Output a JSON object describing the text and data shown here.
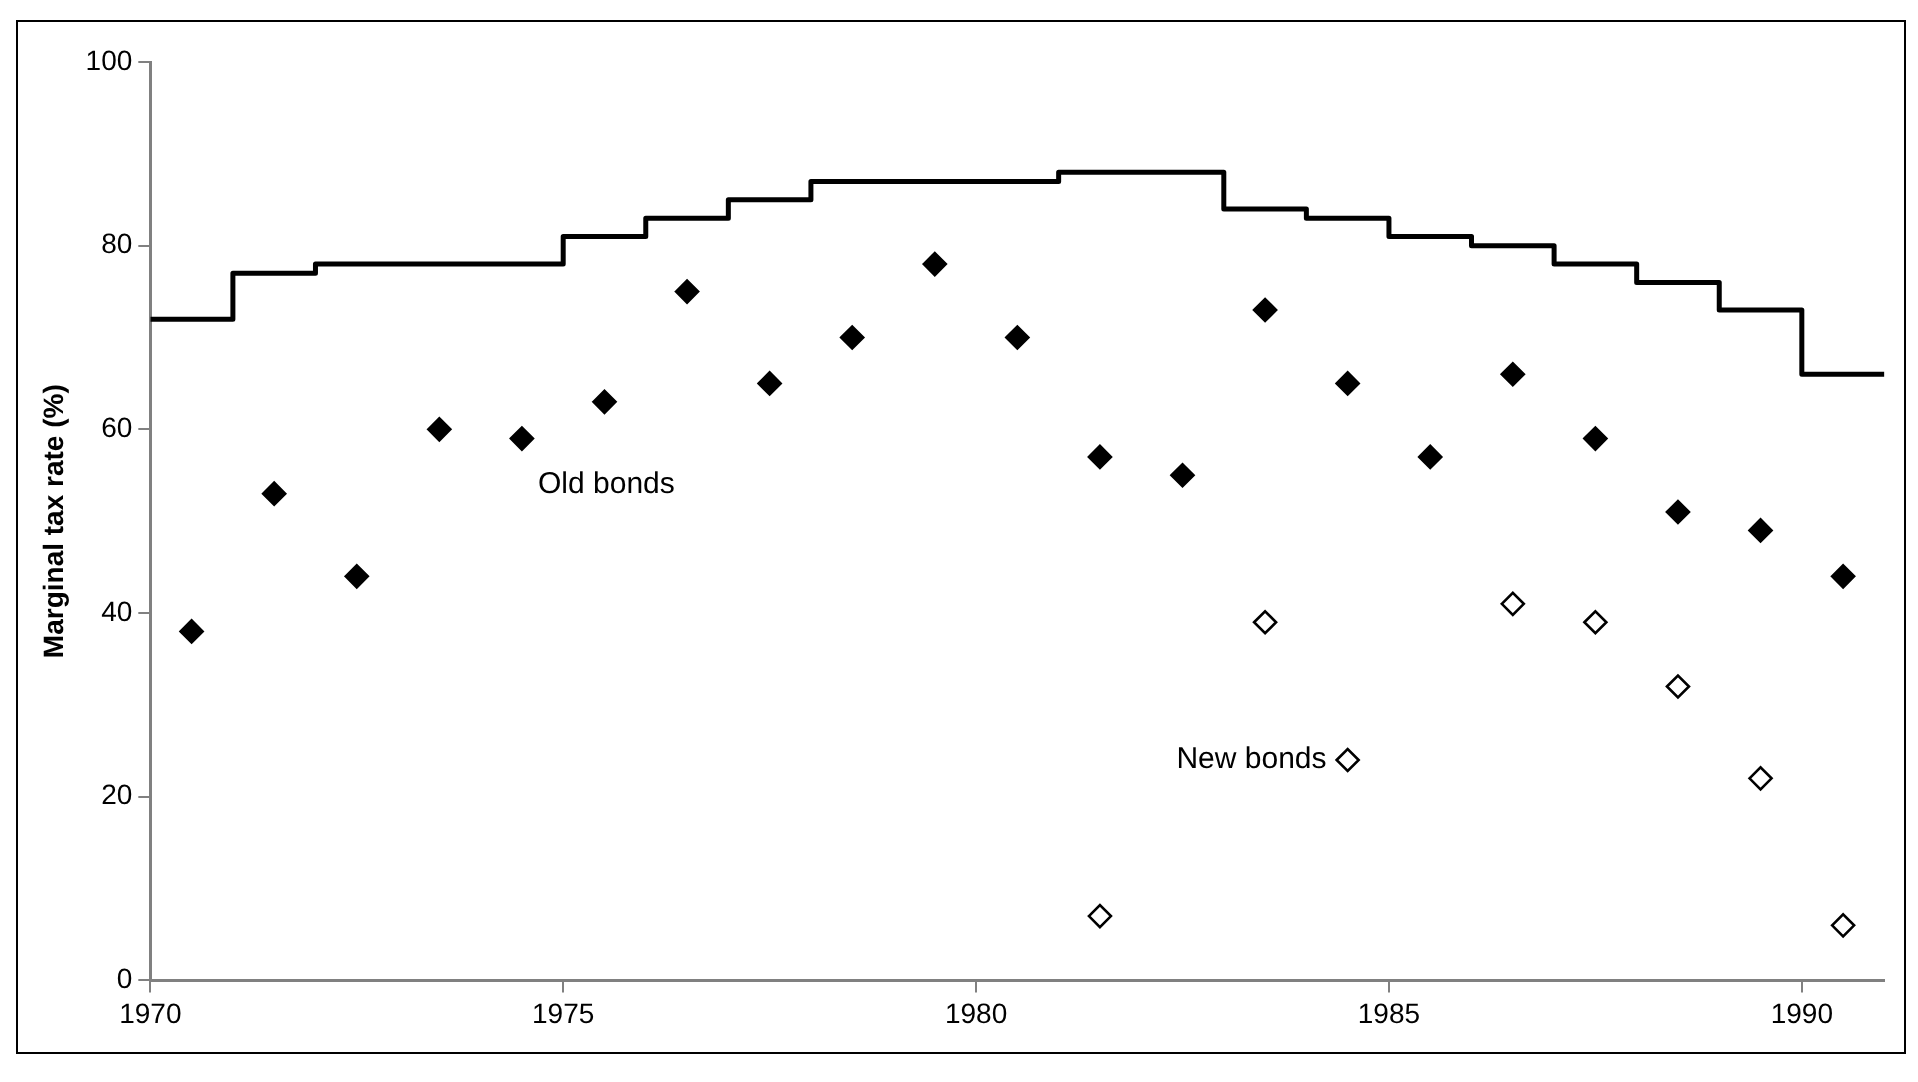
{
  "chart_data": {
    "type": "scatter",
    "ylabel": "Marginal tax rate (%)",
    "xlim": [
      1970,
      1991
    ],
    "xticks": [
      1970,
      1975,
      1980,
      1985,
      1990
    ],
    "ylim": [
      0,
      100
    ],
    "yticks": [
      0,
      20,
      40,
      60,
      80,
      100
    ],
    "grid": false,
    "legend": false,
    "marker": "diamond",
    "series": [
      {
        "type": "step",
        "marker": "none",
        "color": "#000000",
        "x": [
          1970,
          1971,
          1972,
          1973,
          1974,
          1975,
          1976,
          1977,
          1978,
          1979,
          1980,
          1981,
          1982,
          1983,
          1984,
          1985,
          1986,
          1987,
          1988,
          1989,
          1990,
          1991
        ],
        "values": [
          72,
          77,
          78,
          78,
          78,
          81,
          83,
          85,
          87,
          87,
          87,
          88,
          88,
          84,
          83,
          81,
          80,
          78,
          76,
          73,
          66,
          66
        ]
      },
      {
        "name": "Old bonds",
        "color": "#000000",
        "x": [
          1970.5,
          1971.5,
          1972.5,
          1973.5,
          1974.5,
          1975.5,
          1976.5,
          1977.5,
          1978.5,
          1979.5,
          1980.5,
          1981.5,
          1982.5,
          1983.5,
          1984.5,
          1985.5,
          1986.5,
          1987.5,
          1988.5,
          1989.5,
          1990.5
        ],
        "values": [
          38,
          53,
          44,
          60,
          59,
          63,
          75,
          65,
          70,
          78,
          70,
          57,
          55,
          73,
          65,
          57,
          66,
          59,
          51,
          49,
          44
        ]
      },
      {
        "name": "New bonds",
        "color": "#000000",
        "x": [
          1981.5,
          1983.5,
          1984.5,
          1986.5,
          1987.5,
          1988.5,
          1989.5,
          1990.5
        ],
        "values": [
          7,
          39,
          24,
          41,
          39,
          32,
          22,
          6
        ]
      }
    ]
  }
}
